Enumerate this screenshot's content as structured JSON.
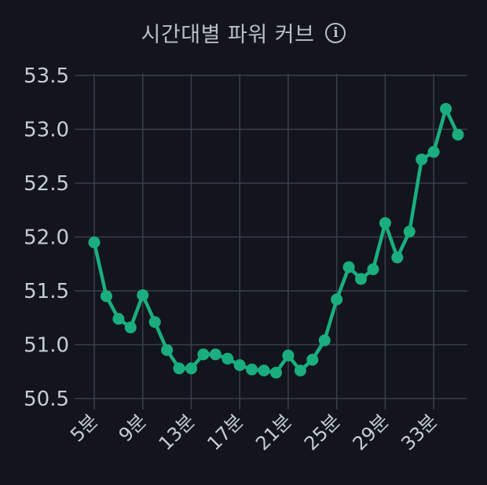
{
  "header": {
    "title": "시간대별 파워 커브",
    "info_icon": "info-icon"
  },
  "chart_data": {
    "type": "line",
    "title": "시간대별 파워 커브",
    "xlabel": "",
    "ylabel": "",
    "x": [
      5,
      6,
      7,
      8,
      9,
      10,
      11,
      12,
      13,
      14,
      15,
      16,
      17,
      18,
      19,
      20,
      21,
      22,
      23,
      24,
      25,
      26,
      27,
      28,
      29,
      30,
      31,
      32,
      33,
      34,
      35
    ],
    "xtick_labels": [
      "5분",
      "9분",
      "13분",
      "17분",
      "21분",
      "25분",
      "29분",
      "33분"
    ],
    "xtick_values": [
      5,
      9,
      13,
      17,
      21,
      25,
      29,
      33
    ],
    "xlim": [
      5,
      35
    ],
    "yticks": [
      "50.5",
      "51.0",
      "51.5",
      "52.0",
      "52.5",
      "53.0",
      "53.5"
    ],
    "ylim": [
      50.5,
      53.5
    ],
    "series": [
      {
        "name": "",
        "color": "#1aae7e",
        "values": [
          51.95,
          51.45,
          51.24,
          51.16,
          51.46,
          51.21,
          50.95,
          50.78,
          50.78,
          50.91,
          50.91,
          50.87,
          50.81,
          50.77,
          50.76,
          50.74,
          50.9,
          50.76,
          50.86,
          51.04,
          51.42,
          51.72,
          51.61,
          51.7,
          52.13,
          51.81,
          52.05,
          52.72,
          52.79,
          53.19,
          52.95
        ]
      }
    ],
    "grid": true,
    "legend": "none"
  }
}
